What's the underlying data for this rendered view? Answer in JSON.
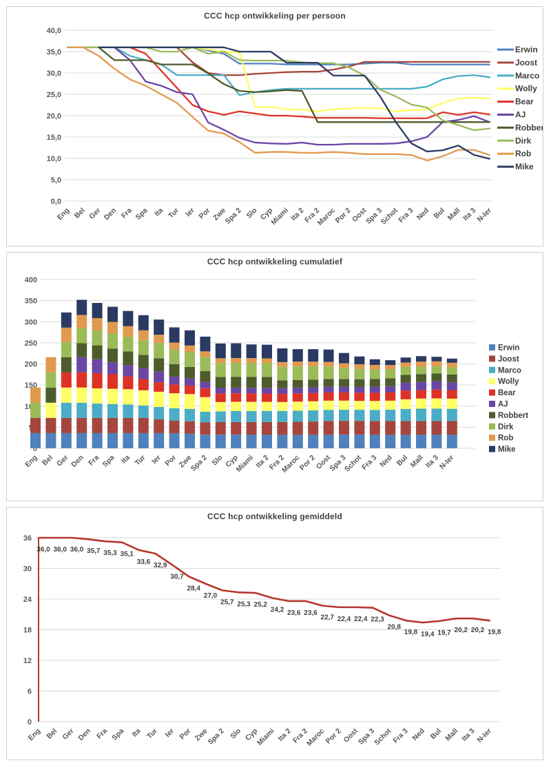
{
  "chart_data": [
    {
      "type": "line",
      "title": "CCC hcp ontwikkeling per persoon",
      "ylim": [
        0,
        40
      ],
      "y_ticks": [
        "40,0",
        "35,0",
        "30,0",
        "25,0",
        "20,0",
        "15,0",
        "10,0",
        "5,0",
        "0,0"
      ],
      "grid": true,
      "legend_position": "right",
      "categories": [
        "Eng",
        "Bel",
        "Ger",
        "Den",
        "Fra",
        "Spa",
        "Ita",
        "Tur",
        "Ier",
        "Por",
        "Zwe",
        "Spa 2",
        "Slo",
        "Cyp",
        "Miami",
        "Ita 2",
        "Fra 2",
        "Maroc",
        "Por 2",
        "Oost",
        "Spa 3",
        "Schot",
        "Fra 3",
        "Ned",
        "Bul",
        "Mall",
        "Ita 3",
        "N-Ier"
      ],
      "series": [
        {
          "name": "Erwin",
          "color": "#4F81BD",
          "values": [
            36,
            36,
            36,
            36,
            36,
            36,
            36,
            36,
            36,
            35.3,
            34.5,
            32.2,
            32.2,
            32.2,
            32,
            32,
            32,
            32,
            32,
            32.2,
            32.4,
            32.4,
            32,
            32,
            32,
            32,
            32,
            32
          ]
        },
        {
          "name": "Joost",
          "color": "#A5463D",
          "values": [
            36,
            36,
            36,
            36,
            36,
            36,
            36,
            36,
            32.5,
            30,
            29.5,
            29.5,
            29.8,
            30,
            30.2,
            30.3,
            30.3,
            30.8,
            31.5,
            32.6,
            32.6,
            32.6,
            32.6,
            32.6,
            32.6,
            32.6,
            32.6,
            32.6
          ]
        },
        {
          "name": "Marco",
          "color": "#4BACC6",
          "values": [
            null,
            null,
            36,
            36,
            34,
            33,
            32,
            29.5,
            29.5,
            29.5,
            29.5,
            24.8,
            25.5,
            26,
            26.3,
            26.3,
            26.3,
            26.3,
            26.3,
            26.3,
            26.3,
            26.3,
            26.3,
            26.8,
            28.5,
            29.3,
            29.5,
            29
          ]
        },
        {
          "name": "Wolly",
          "color": "#FFFF66",
          "values": [
            null,
            36,
            36,
            36,
            36,
            36,
            36,
            36,
            36,
            35.5,
            35,
            34.8,
            22,
            22.1,
            21.5,
            21.4,
            21,
            21.5,
            21.7,
            21.8,
            21.7,
            21,
            21.3,
            21.5,
            23,
            24,
            24.2,
            24
          ]
        },
        {
          "name": "Bear",
          "color": "#DD3226",
          "values": [
            null,
            null,
            36,
            36,
            36,
            34.5,
            30.5,
            26.5,
            22.5,
            21,
            20.2,
            21,
            20.5,
            20,
            20,
            19.8,
            19.5,
            19.5,
            19.5,
            19.5,
            19.4,
            19.4,
            19.4,
            19.4,
            20.8,
            20.2,
            20.8,
            20.3
          ]
        },
        {
          "name": "AJ",
          "color": "#6A46A5",
          "values": [
            null,
            null,
            null,
            36,
            33,
            28,
            27,
            25.5,
            25,
            18.4,
            16.7,
            14.8,
            13.7,
            13.5,
            13.4,
            13.7,
            13.2,
            13.2,
            13.4,
            13.4,
            13.4,
            13.5,
            14,
            15,
            18.5,
            19,
            19.9,
            18.5
          ]
        },
        {
          "name": "Robbert",
          "color": "#4E5B2B",
          "values": [
            null,
            36,
            36,
            33,
            33,
            33,
            32,
            32,
            32,
            29.9,
            27.4,
            25.8,
            25.5,
            25.7,
            26,
            25.8,
            18.5,
            18.5,
            18.5,
            18.5,
            18.5,
            18.5,
            18.5,
            18.5,
            18.5,
            18.5,
            18.5,
            18.5
          ]
        },
        {
          "name": "Dirk",
          "color": "#9BBB59",
          "values": [
            36,
            36,
            36,
            36,
            36,
            36,
            35,
            35,
            36,
            34.5,
            35,
            33,
            32.9,
            32.9,
            32.9,
            32.5,
            32.3,
            32.3,
            31.3,
            29.4,
            26.1,
            24.5,
            22.6,
            21.9,
            18.9,
            17.8,
            16.6,
            17
          ]
        },
        {
          "name": "Rob",
          "color": "#E09A4E",
          "values": [
            36,
            36,
            34,
            31,
            28.5,
            27,
            25,
            23,
            19.7,
            16.5,
            15.8,
            13.8,
            11.3,
            11.5,
            11.5,
            11.3,
            11.3,
            11.5,
            11.3,
            11,
            11,
            11,
            10.8,
            9.5,
            10.5,
            12,
            12,
            10.8
          ]
        },
        {
          "name": "Mike",
          "color": "#2B3A63",
          "values": [
            null,
            null,
            36,
            36,
            36,
            36,
            36,
            36,
            36,
            36,
            36,
            35,
            35,
            35,
            32.4,
            32.4,
            32.4,
            29.4,
            29.4,
            29.4,
            24.5,
            18.5,
            13.5,
            11.6,
            11.9,
            13,
            10.8,
            9.9
          ]
        }
      ]
    },
    {
      "type": "bar",
      "stacked": true,
      "title": "CCC hcp ontwikkeling cumulatief",
      "ylim": [
        0,
        400
      ],
      "y_ticks": [
        "400",
        "350",
        "300",
        "250",
        "200",
        "150",
        "100",
        "50",
        "0"
      ],
      "grid": true,
      "legend_position": "right",
      "categories": [
        "Eng",
        "Bel",
        "Ger",
        "Den",
        "Fra",
        "Spa",
        "Ita",
        "Tur",
        "Ier",
        "Por",
        "Zwe",
        "Spa 2",
        "Slo",
        "Cyp",
        "Miami",
        "Ita 2",
        "Fra 2",
        "Maroc",
        "Por 2",
        "Oost",
        "Spa 3",
        "Schot",
        "Fra 3",
        "Ned",
        "Bul",
        "Mall",
        "Ita 3",
        "N-Ier"
      ],
      "series": [
        {
          "name": "Erwin",
          "color": "#4F81BD",
          "values": [
            36,
            36,
            36,
            36,
            36,
            36,
            36,
            36,
            36,
            35.3,
            34.5,
            32.2,
            32.2,
            32.2,
            32,
            32,
            32,
            32,
            32,
            32.2,
            32.4,
            32.4,
            32,
            32,
            32,
            32,
            32,
            32
          ]
        },
        {
          "name": "Joost",
          "color": "#A5463D",
          "values": [
            36,
            36,
            36,
            36,
            36,
            36,
            36,
            36,
            32.5,
            30,
            29.5,
            29.5,
            29.8,
            30,
            30.2,
            30.3,
            30.3,
            30.8,
            31.5,
            32.6,
            32.6,
            32.6,
            32.6,
            32.6,
            32.6,
            32.6,
            32.6,
            32.6
          ]
        },
        {
          "name": "Marco",
          "color": "#4BACC6",
          "values": [
            null,
            null,
            36,
            36,
            34,
            33,
            32,
            29.5,
            29.5,
            29.5,
            29.5,
            24.8,
            25.5,
            26,
            26.3,
            26.3,
            26.3,
            26.3,
            26.3,
            26.3,
            26.3,
            26.3,
            26.3,
            26.8,
            28.5,
            29.3,
            29.5,
            29
          ]
        },
        {
          "name": "Wolly",
          "color": "#FFFF66",
          "values": [
            null,
            36,
            36,
            36,
            36,
            36,
            36,
            36,
            36,
            35.5,
            35,
            34.8,
            22,
            22.1,
            21.5,
            21.4,
            21,
            21.5,
            21.7,
            21.8,
            21.7,
            21,
            21.3,
            21.5,
            23,
            24,
            24.2,
            24
          ]
        },
        {
          "name": "Bear",
          "color": "#DD3226",
          "values": [
            null,
            null,
            36,
            36,
            36,
            34.5,
            30.5,
            26.5,
            22.5,
            21,
            20.2,
            21,
            20.5,
            20,
            20,
            19.8,
            19.5,
            19.5,
            19.5,
            19.5,
            19.4,
            19.4,
            19.4,
            19.4,
            20.8,
            20.2,
            20.8,
            20.3
          ]
        },
        {
          "name": "AJ",
          "color": "#6A46A5",
          "values": [
            null,
            null,
            null,
            36,
            33,
            28,
            27,
            25.5,
            25,
            18.4,
            16.7,
            14.8,
            13.7,
            13.5,
            13.4,
            13.7,
            13.2,
            13.2,
            13.4,
            13.4,
            13.4,
            13.5,
            14,
            15,
            18.5,
            19,
            19.9,
            18.5
          ]
        },
        {
          "name": "Robbert",
          "color": "#4E5B2B",
          "values": [
            null,
            36,
            36,
            33,
            33,
            33,
            32,
            32,
            32,
            29.9,
            27.4,
            25.8,
            25.5,
            25.7,
            26,
            25.8,
            18.5,
            18.5,
            18.5,
            18.5,
            18.5,
            18.5,
            18.5,
            18.5,
            18.5,
            18.5,
            18.5,
            18.5
          ]
        },
        {
          "name": "Dirk",
          "color": "#9BBB59",
          "values": [
            36,
            36,
            36,
            36,
            36,
            36,
            35,
            35,
            36,
            34.5,
            35,
            33,
            32.9,
            32.9,
            32.9,
            32.5,
            32.3,
            32.3,
            31.3,
            29.4,
            26.1,
            24.5,
            22.6,
            21.9,
            18.9,
            17.8,
            16.6,
            17
          ]
        },
        {
          "name": "Rob",
          "color": "#E09A4E",
          "values": [
            36,
            36,
            34,
            31,
            28.5,
            27,
            25,
            23,
            19.7,
            16.5,
            15.8,
            13.8,
            11.3,
            11.5,
            11.5,
            11.3,
            11.3,
            11.5,
            11.3,
            11,
            11,
            11,
            10.8,
            9.5,
            10.5,
            12,
            12,
            10.8
          ]
        },
        {
          "name": "Mike",
          "color": "#2B3A63",
          "values": [
            null,
            null,
            36,
            36,
            36,
            36,
            36,
            36,
            36,
            36,
            36,
            35,
            35,
            35,
            32.4,
            32.4,
            32.4,
            29.4,
            29.4,
            29.4,
            24.5,
            18.5,
            13.5,
            11.6,
            11.9,
            13,
            10.8,
            9.9
          ]
        }
      ]
    },
    {
      "type": "line",
      "title": "CCC hcp ontwikkeling gemiddeld",
      "ylim": [
        0,
        36
      ],
      "y_ticks": [
        "36",
        "30",
        "24",
        "18",
        "12",
        "6",
        "0"
      ],
      "grid": true,
      "color": "#B5362C",
      "categories": [
        "Eng",
        "Bel",
        "Ger",
        "Den",
        "Fra",
        "Spa",
        "Ita",
        "Tur",
        "Ier",
        "Por",
        "Zwe",
        "Spa 2",
        "Slo",
        "Cyp",
        "Miami",
        "Ita 2",
        "Fra 2",
        "Maroc",
        "Por 2",
        "Oost",
        "Spa 3",
        "Schot",
        "Fra 3",
        "Ned",
        "Bul",
        "Mall",
        "Ita 3",
        "N-Ier"
      ],
      "values": [
        36.0,
        36.0,
        36.0,
        35.7,
        35.3,
        35.1,
        33.6,
        32.9,
        30.7,
        28.4,
        27.0,
        25.7,
        25.3,
        25.2,
        24.2,
        23.6,
        23.6,
        22.7,
        22.4,
        22.4,
        22.3,
        20.8,
        19.8,
        19.4,
        19.7,
        20.2,
        20.2,
        19.8
      ],
      "labels": [
        "36,0",
        "36,0",
        "36,0",
        "35,7",
        "35,3",
        "35,1",
        "33,6",
        "32,9",
        "30,7",
        "28,4",
        "27,0",
        "25,7",
        "25,3",
        "25,2",
        "24,2",
        "23,6",
        "23,6",
        "22,7",
        "22,4",
        "22,4",
        "22,3",
        "20,8",
        "19,8",
        "19,4",
        "19,7",
        "20,2",
        "20,2",
        "19,8"
      ]
    }
  ]
}
